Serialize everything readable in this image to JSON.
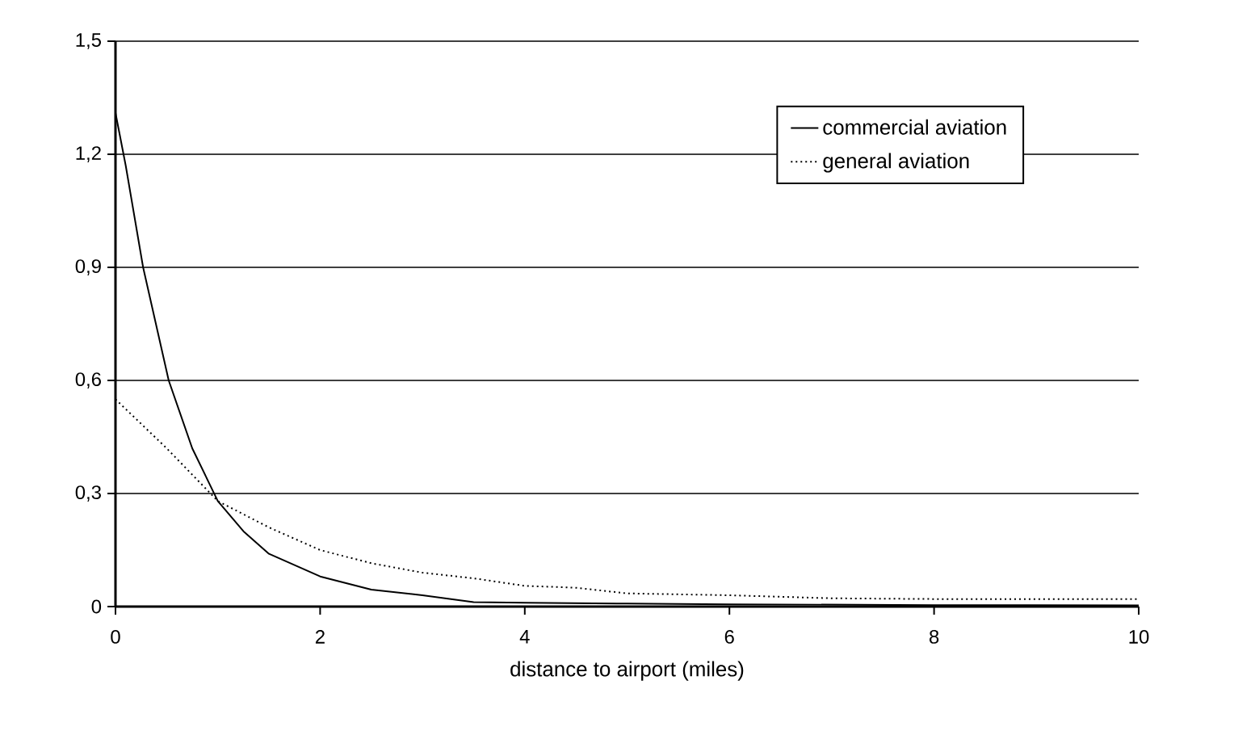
{
  "chart_data": {
    "type": "line",
    "xlabel": "distance to airport (miles)",
    "series": [
      {
        "name": "commercial aviation",
        "color": "#000000",
        "line_style": "solid",
        "x": [
          0,
          0.1,
          0.27,
          0.52,
          0.75,
          1,
          1.25,
          1.5,
          2,
          2.5,
          3,
          3.5,
          4,
          5,
          6,
          8,
          10
        ],
        "values": [
          1.31,
          1.17,
          0.9,
          0.6,
          0.42,
          0.28,
          0.2,
          0.14,
          0.08,
          0.045,
          0.03,
          0.012,
          0.01,
          0.008,
          0.006,
          0.004,
          0.003
        ]
      },
      {
        "name": "general aviation",
        "color": "#000000",
        "line_style": "dotted",
        "x": [
          0,
          0.5,
          1,
          1.5,
          2,
          2.5,
          3,
          3.5,
          4,
          4.5,
          5,
          6,
          7,
          8,
          10
        ],
        "values": [
          0.55,
          0.42,
          0.28,
          0.21,
          0.15,
          0.115,
          0.09,
          0.075,
          0.055,
          0.05,
          0.035,
          0.03,
          0.022,
          0.02,
          0.02
        ]
      }
    ],
    "xlim": [
      0,
      10
    ],
    "xticks": [
      0,
      2,
      4,
      6,
      8,
      10
    ],
    "ylim": [
      0,
      1.5
    ],
    "yticks": [
      0,
      {
        "value": 0.3,
        "label": "0,3"
      },
      {
        "value": 0.6,
        "label": "0,6"
      },
      {
        "value": 0.9,
        "label": "0,9"
      },
      {
        "value": 1.2,
        "label": "1,2"
      },
      {
        "value": 1.5,
        "label": "1,5"
      }
    ],
    "grid": "y",
    "legend": "top right",
    "marker": "none"
  }
}
